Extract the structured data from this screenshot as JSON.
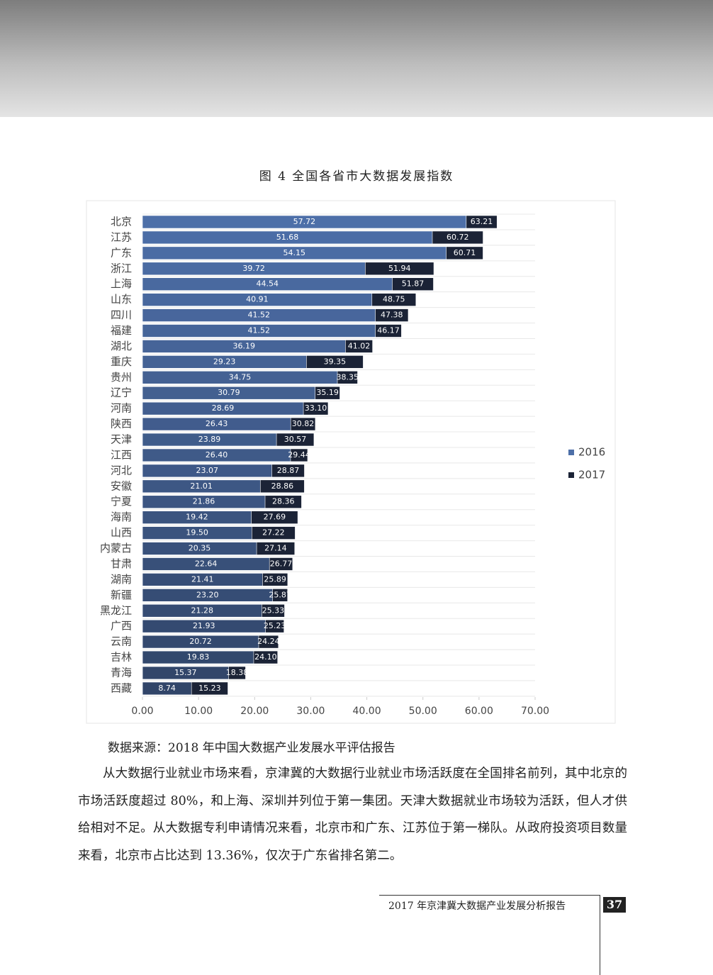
{
  "chart_data": {
    "type": "hbar-overlap",
    "title": "图 4 全国各省市大数据发展指数",
    "categories": [
      "北京",
      "江苏",
      "广东",
      "浙江",
      "上海",
      "山东",
      "四川",
      "福建",
      "湖北",
      "重庆",
      "贵州",
      "辽宁",
      "河南",
      "陕西",
      "天津",
      "江西",
      "河北",
      "安徽",
      "宁夏",
      "海南",
      "山西",
      "内蒙古",
      "甘肃",
      "湖南",
      "新疆",
      "黑龙江",
      "广西",
      "云南",
      "吉林",
      "青海",
      "西藏"
    ],
    "series": [
      {
        "name": "2016",
        "color": "#4d6fa8",
        "values": [
          57.72,
          51.68,
          54.15,
          39.72,
          44.54,
          40.91,
          41.52,
          41.52,
          36.19,
          29.23,
          34.75,
          30.79,
          28.69,
          26.43,
          23.89,
          26.4,
          23.07,
          21.01,
          21.86,
          19.42,
          19.5,
          20.35,
          22.64,
          21.41,
          23.2,
          21.28,
          21.93,
          20.72,
          19.83,
          15.37,
          8.74
        ],
        "value_labels": [
          "57.72",
          "51.68",
          "54.15",
          "39.72",
          "44.54",
          "40.91",
          "41.52",
          "41.52",
          "36.19",
          "29.23",
          "34.75",
          "30.79",
          "28.69",
          "26.43",
          "23.89",
          "26.40",
          "23.07",
          "21.01",
          "21.86",
          "19.42",
          "19.50",
          "20.35",
          "22.64",
          "21.41",
          "23.20",
          "21.28",
          "21.93",
          "20.72",
          "19.83",
          "15.37",
          "8.74"
        ]
      },
      {
        "name": "2017",
        "color": "#1b2336",
        "values": [
          63.21,
          60.72,
          60.71,
          51.94,
          51.87,
          48.75,
          47.38,
          46.17,
          41.02,
          39.35,
          38.35,
          35.19,
          33.1,
          30.82,
          30.57,
          29.44,
          28.87,
          28.86,
          28.36,
          27.69,
          27.22,
          27.14,
          26.77,
          25.89,
          25.87,
          25.33,
          25.23,
          24.24,
          24.1,
          18.38,
          15.23
        ],
        "value_labels": [
          "63.21",
          "60.72",
          "60.71",
          "51.94",
          "51.87",
          "48.75",
          "47.38",
          "46.17",
          "41.02",
          "39.35",
          "38.35",
          "35.19",
          "33.10",
          "30.82",
          "30.57",
          "29.44",
          "28.87",
          "28.86",
          "28.36",
          "27.69",
          "27.22",
          "27.14",
          "26.77",
          "25.89",
          "25.87",
          "25.33",
          "25.23",
          "24.24",
          "24.10",
          "18.38",
          "15.23"
        ]
      }
    ],
    "xlim": [
      0,
      70
    ],
    "xticks": [
      {
        "value": 0,
        "label": "0.00"
      },
      {
        "value": 10,
        "label": "10.00"
      },
      {
        "value": 20,
        "label": "20.00"
      },
      {
        "value": 30,
        "label": "30.00"
      },
      {
        "value": 40,
        "label": "40.00"
      },
      {
        "value": 50,
        "label": "50.00"
      },
      {
        "value": 60,
        "label": "60.00"
      },
      {
        "value": 70,
        "label": "70.00"
      }
    ],
    "legend": "right"
  },
  "source": "数据来源：2018 年中国大数据产业发展水平评估报告",
  "paragraph": "从大数据行业就业市场来看，京津冀的大数据行业就业市场活跃度在全国排名前列，其中北京的市场活跃度超过 80%，和上海、深圳并列位于第一集团。天津大数据就业市场较为活跃，但人才供给相对不足。从大数据专利申请情况来看，北京市和广东、江苏位于第一梯队。从政府投资项目数量来看，北京市占比达到 13.36%，仅次于广东省排名第二。",
  "footer": {
    "title": "2017 年京津冀大数据产业发展分析报告",
    "page": "37"
  }
}
